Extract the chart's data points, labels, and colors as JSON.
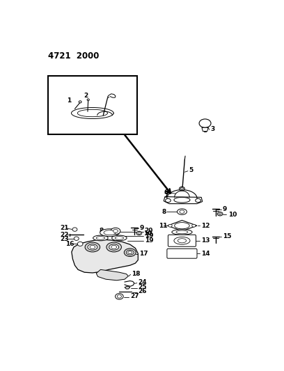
{
  "title": "4721  2000",
  "bg_color": "#ffffff",
  "fg_color": "#000000",
  "fig_width": 4.08,
  "fig_height": 5.33,
  "dpi": 100
}
